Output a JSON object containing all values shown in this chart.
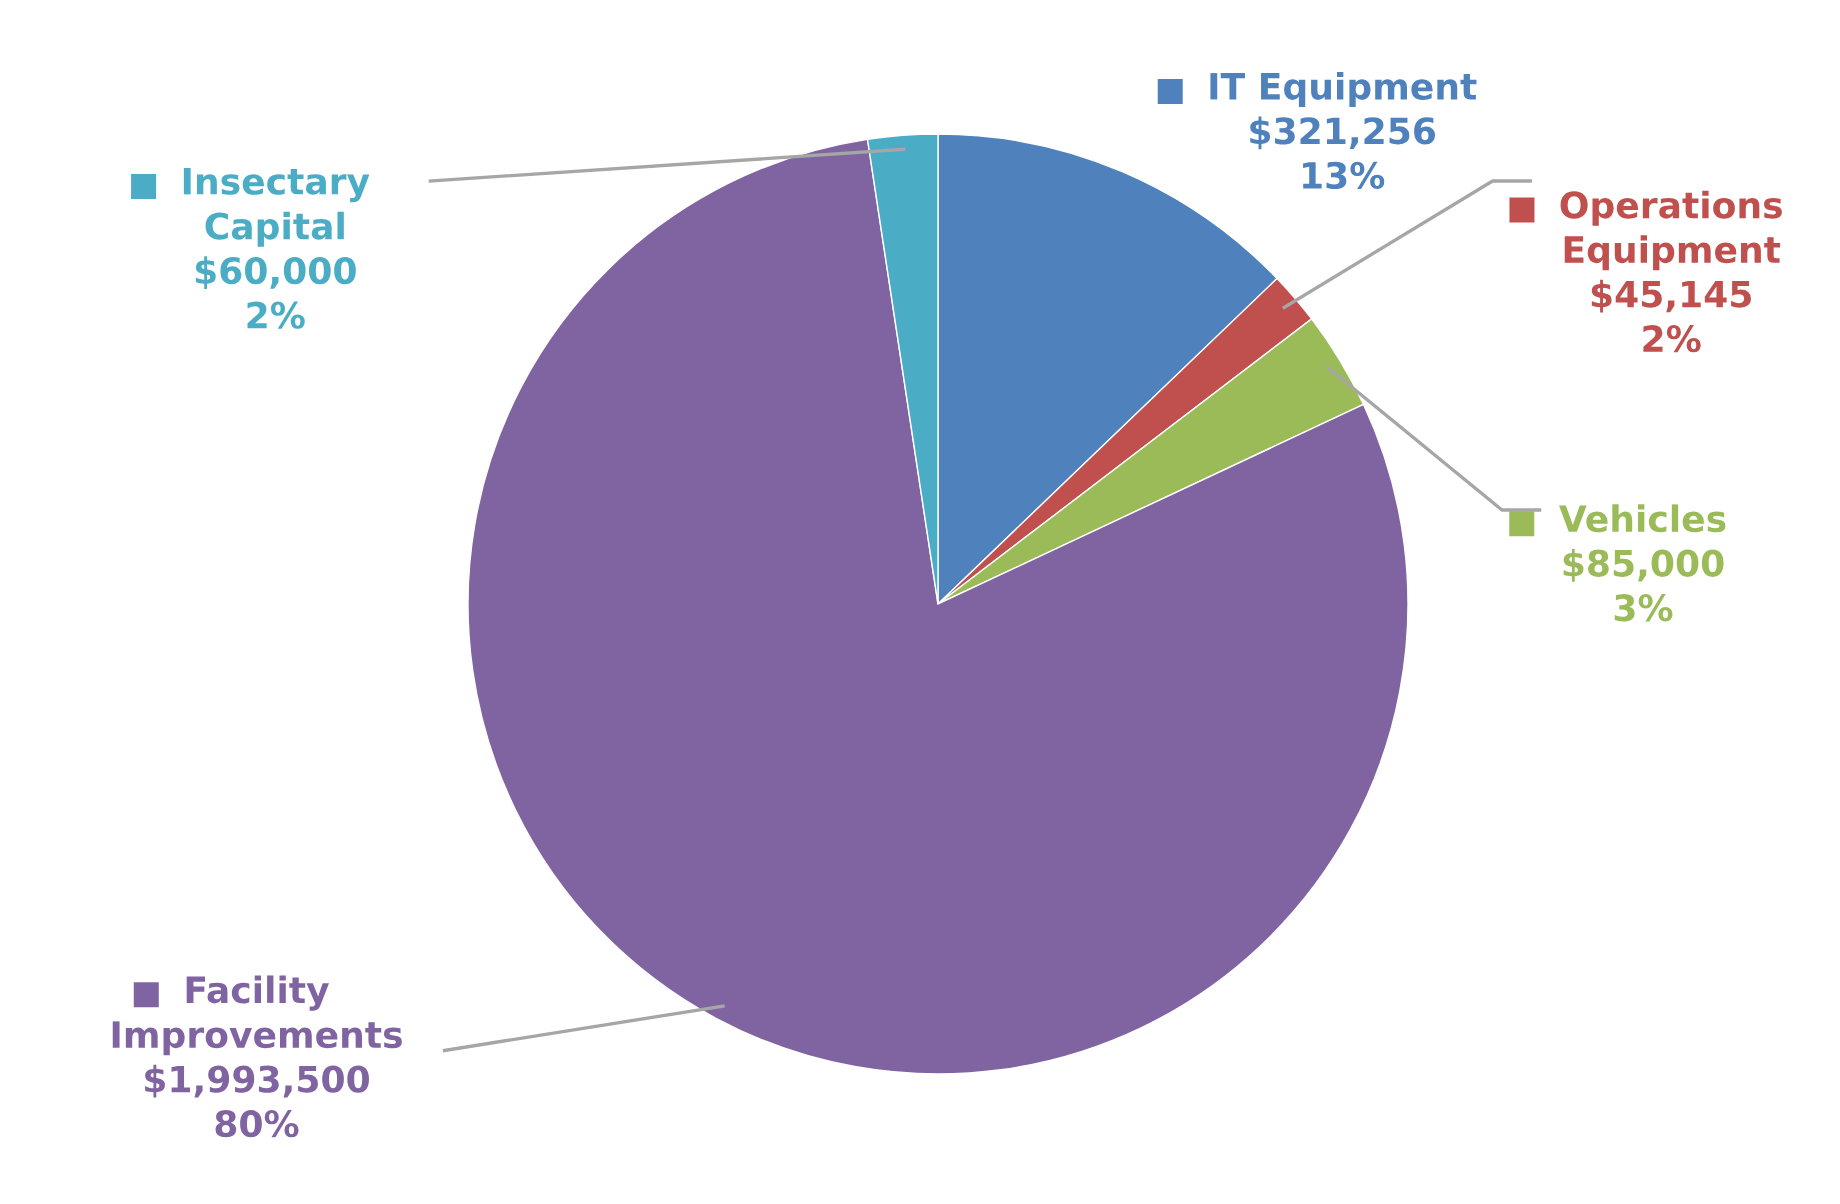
{
  "chart_data": {
    "type": "pie",
    "categories": [
      "IT Equipment",
      "Operations Equipment",
      "Vehicles",
      "Facility Improvements",
      "Insectary Capital"
    ],
    "values": [
      321256,
      45145,
      85000,
      1993500,
      60000
    ],
    "colors": [
      "#4f81bd",
      "#c0504d",
      "#9bbb59",
      "#8064a2",
      "#4bacc6"
    ],
    "value_labels": [
      "$321,256\n13%",
      "$45,145\n2%",
      "$85,000\n3%",
      "$1,993,500\n80%",
      "$60,000\n2%"
    ],
    "legend": "top right"
  }
}
